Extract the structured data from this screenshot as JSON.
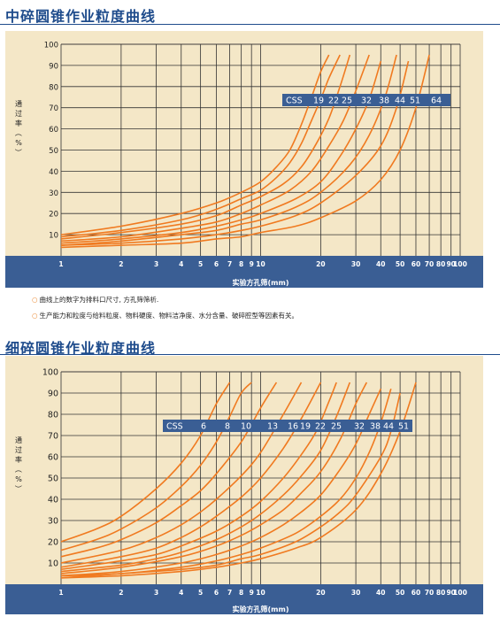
{
  "chart_data": [
    {
      "type": "line",
      "title": "中碎圆锥作业粒度曲线",
      "xlabel": "实验方孔筛(mm)",
      "ylabel": "通过率（%）",
      "xscale": "log",
      "xlim": [
        1,
        100
      ],
      "ylim": [
        0,
        100
      ],
      "xticks": [
        "1",
        "2",
        "3",
        "4",
        "5",
        "6",
        "7",
        "8",
        "9",
        "10",
        "20",
        "30",
        "40",
        "50",
        "60",
        "70",
        "80",
        "90",
        "100"
      ],
      "yticks": [
        "10",
        "20",
        "30",
        "40",
        "50",
        "60",
        "70",
        "80",
        "90",
        "100"
      ],
      "grid": true,
      "legend_prefix": "CSS",
      "series": [
        {
          "name": "19",
          "x": [
            1,
            2,
            4,
            6,
            8,
            10,
            12,
            14,
            16,
            18,
            20,
            22
          ],
          "y": [
            10,
            14,
            20,
            25,
            30,
            35,
            42,
            50,
            62,
            75,
            87,
            95
          ]
        },
        {
          "name": "22",
          "x": [
            1,
            2,
            4,
            6,
            8,
            10,
            12,
            14,
            16,
            18,
            20,
            22,
            25
          ],
          "y": [
            9,
            12,
            17,
            22,
            27,
            31,
            37,
            44,
            53,
            64,
            74,
            84,
            95
          ]
        },
        {
          "name": "25",
          "x": [
            1,
            2,
            4,
            6,
            8,
            10,
            13,
            16,
            19,
            22,
            25,
            28
          ],
          "y": [
            8,
            11,
            15,
            19,
            24,
            28,
            34,
            42,
            53,
            65,
            80,
            95
          ]
        },
        {
          "name": "32",
          "x": [
            1,
            2,
            4,
            6,
            8,
            10,
            14,
            18,
            22,
            26,
            30,
            35
          ],
          "y": [
            7,
            9,
            13,
            16,
            20,
            24,
            31,
            40,
            52,
            64,
            78,
            95
          ]
        },
        {
          "name": "38",
          "x": [
            1,
            2,
            4,
            6,
            8,
            10,
            15,
            20,
            25,
            30,
            35,
            40
          ],
          "y": [
            6,
            8,
            11,
            14,
            17,
            20,
            27,
            35,
            47,
            60,
            74,
            92
          ]
        },
        {
          "name": "44",
          "x": [
            1,
            2,
            4,
            6,
            8,
            10,
            15,
            20,
            28,
            35,
            42,
            48
          ],
          "y": [
            5,
            7,
            10,
            12,
            15,
            17,
            23,
            30,
            43,
            57,
            75,
            95
          ]
        },
        {
          "name": "51",
          "x": [
            1,
            2,
            4,
            6,
            8,
            10,
            15,
            20,
            30,
            40,
            48,
            55
          ],
          "y": [
            5,
            6,
            8,
            10,
            12,
            14,
            19,
            25,
            38,
            52,
            70,
            92
          ]
        },
        {
          "name": "64",
          "x": [
            1,
            2,
            4,
            6,
            8,
            10,
            15,
            20,
            30,
            40,
            50,
            60,
            70
          ],
          "y": [
            4,
            5,
            6,
            8,
            9,
            11,
            14,
            18,
            26,
            36,
            50,
            70,
            95
          ]
        }
      ]
    },
    {
      "type": "line",
      "title": "细碎圆锥作业粒度曲线",
      "xlabel": "实验方孔筛(mm)",
      "ylabel": "通过率（%）",
      "xscale": "log",
      "xlim": [
        1,
        100
      ],
      "ylim": [
        0,
        100
      ],
      "xticks": [
        "1",
        "2",
        "3",
        "4",
        "5",
        "6",
        "7",
        "8",
        "9",
        "10",
        "20",
        "30",
        "40",
        "50",
        "60",
        "70",
        "80",
        "90",
        "100"
      ],
      "yticks": [
        "10",
        "20",
        "30",
        "40",
        "50",
        "60",
        "70",
        "80",
        "90",
        "100"
      ],
      "grid": true,
      "legend_prefix": "CSS",
      "series": [
        {
          "name": "6",
          "x": [
            1,
            1.5,
            2,
            3,
            4,
            5,
            6,
            7
          ],
          "y": [
            20,
            26,
            32,
            45,
            57,
            70,
            85,
            95
          ]
        },
        {
          "name": "8",
          "x": [
            1,
            1.5,
            2,
            3,
            4,
            5,
            6,
            7,
            8,
            9
          ],
          "y": [
            16,
            21,
            26,
            36,
            46,
            56,
            67,
            79,
            90,
            95
          ]
        },
        {
          "name": "10",
          "x": [
            1,
            1.5,
            2,
            3,
            4,
            5,
            6,
            8,
            10,
            12
          ],
          "y": [
            13,
            17,
            21,
            29,
            37,
            44,
            52,
            67,
            83,
            95
          ]
        },
        {
          "name": "13",
          "x": [
            1,
            2,
            3,
            4,
            5,
            6,
            8,
            10,
            13,
            16
          ],
          "y": [
            10,
            16,
            22,
            28,
            34,
            40,
            51,
            62,
            80,
            95
          ]
        },
        {
          "name": "16",
          "x": [
            1,
            2,
            3,
            4,
            5,
            6,
            8,
            10,
            13,
            16,
            20
          ],
          "y": [
            8,
            13,
            17,
            22,
            27,
            32,
            41,
            50,
            64,
            78,
            95
          ]
        },
        {
          "name": "19",
          "x": [
            1,
            2,
            3,
            4,
            6,
            8,
            10,
            13,
            16,
            19,
            22,
            24
          ],
          "y": [
            7,
            11,
            14,
            18,
            25,
            32,
            39,
            50,
            61,
            72,
            86,
            95
          ]
        },
        {
          "name": "22",
          "x": [
            1,
            2,
            3,
            4,
            6,
            8,
            10,
            13,
            16,
            20,
            24,
            28
          ],
          "y": [
            6,
            9,
            12,
            15,
            21,
            27,
            33,
            42,
            51,
            63,
            79,
            95
          ]
        },
        {
          "name": "25",
          "x": [
            1,
            2,
            4,
            6,
            8,
            10,
            13,
            16,
            20,
            25,
            30,
            34
          ],
          "y": [
            5,
            8,
            13,
            18,
            23,
            28,
            35,
            43,
            53,
            68,
            85,
            95
          ]
        },
        {
          "name": "32",
          "x": [
            1,
            2,
            4,
            6,
            8,
            10,
            13,
            16,
            20,
            25,
            30,
            35,
            40
          ],
          "y": [
            4,
            6,
            10,
            14,
            18,
            22,
            28,
            34,
            42,
            54,
            66,
            80,
            92
          ]
        },
        {
          "name": "38",
          "x": [
            1,
            2,
            4,
            6,
            8,
            10,
            15,
            20,
            25,
            30,
            35,
            40,
            45
          ],
          "y": [
            4,
            5,
            8,
            11,
            14,
            17,
            24,
            32,
            40,
            50,
            62,
            76,
            92
          ]
        },
        {
          "name": "44",
          "x": [
            1,
            2,
            4,
            6,
            8,
            10,
            15,
            20,
            25,
            30,
            40,
            45,
            50
          ],
          "y": [
            3,
            5,
            7,
            9,
            12,
            14,
            20,
            27,
            34,
            42,
            60,
            72,
            90
          ]
        },
        {
          "name": "51",
          "x": [
            1,
            2,
            4,
            6,
            8,
            10,
            15,
            20,
            30,
            40,
            50,
            60
          ],
          "y": [
            3,
            4,
            6,
            8,
            10,
            12,
            17,
            22,
            35,
            52,
            72,
            95
          ]
        }
      ]
    }
  ],
  "notes": [
    "曲线上的数字为排料口尺寸, 方孔筛筛析.",
    "生产能力和粒度与给料粒度、物料硬度、物料洁净度、水分含量、破碎腔型等因素有关。"
  ],
  "colors": {
    "title": "#1f4c8c",
    "panel_bg": "#f4e7c7",
    "axis_band": "#3a5e94",
    "curve": "#f07a20",
    "grid": "#333333",
    "legend_bg": "#3a5e94",
    "legend_text": "#ffffff",
    "note_bullet": "#e87d1e"
  }
}
